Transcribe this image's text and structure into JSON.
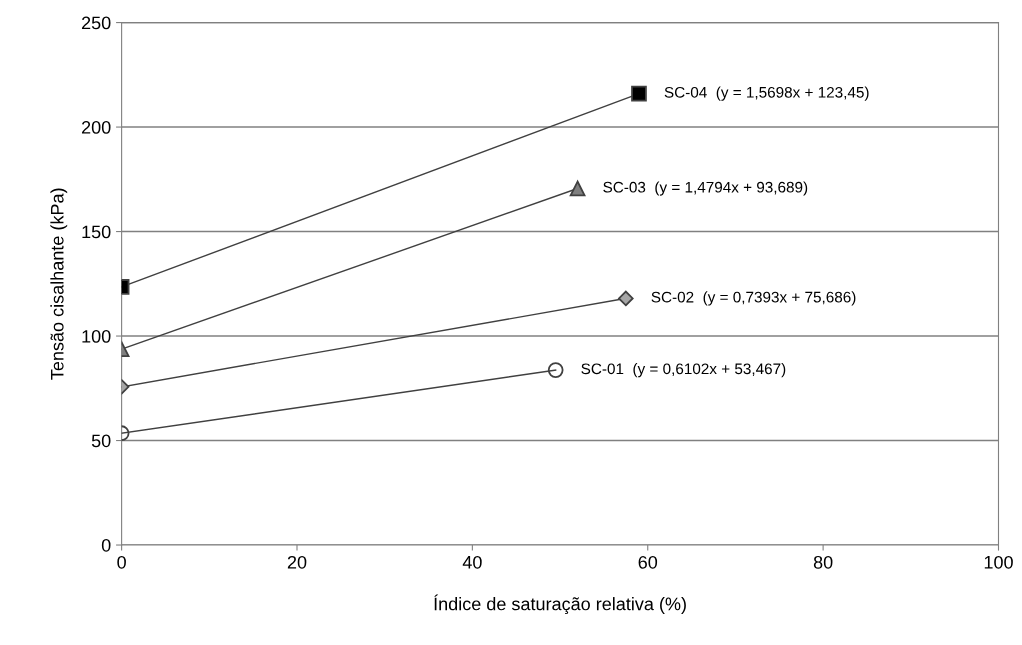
{
  "chart_data": {
    "type": "line",
    "xlabel": "Índice de saturação relativa (%)",
    "ylabel": "Tensão cisalhante (kPa)",
    "xlim": [
      0,
      100
    ],
    "xticks": [
      0,
      20,
      40,
      60,
      80,
      100
    ],
    "ylim": [
      0,
      250
    ],
    "yticks": [
      0,
      50,
      100,
      150,
      200,
      250
    ],
    "grid": "y",
    "legend": false,
    "series": [
      {
        "name": "SC-01  (y = 0,6102x + 53,467)",
        "color": "#404040",
        "marker": "circle",
        "x": [
          0,
          49.5
        ],
        "values": [
          53.5,
          83.7
        ]
      },
      {
        "name": "SC-02  (y = 0,7393x + 75,686)",
        "color": "#a6a6a6",
        "marker": "diamond",
        "x": [
          0,
          57.5
        ],
        "values": [
          75.7,
          118
        ]
      },
      {
        "name": "SC-03  (y = 1,4794x + 93,689)",
        "color": "#7f7f7f",
        "marker": "triangle",
        "x": [
          0,
          52
        ],
        "values": [
          93.7,
          170.6
        ]
      },
      {
        "name": "SC-04  (y = 1,5698x + 123,45)",
        "color": "#000000",
        "marker": "square",
        "x": [
          0,
          59
        ],
        "values": [
          123.5,
          216
        ]
      }
    ]
  }
}
